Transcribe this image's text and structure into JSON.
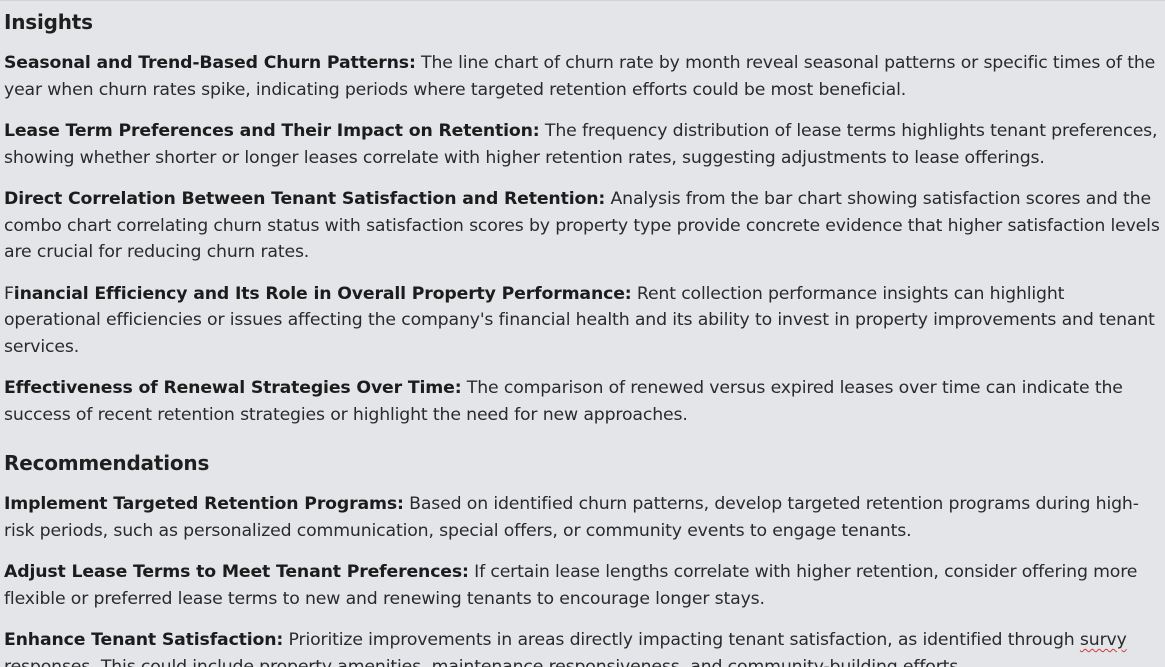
{
  "insights": {
    "heading": "Insights",
    "items": [
      {
        "title": "Seasonal and Trend-Based Churn Patterns:",
        "text": " The line chart of churn rate by month reveal seasonal patterns or specific times of the year when churn rates spike, indicating periods where targeted retention efforts could be most beneficial."
      },
      {
        "title": "Lease Term Preferences and Their Impact on Retention:",
        "text": " The frequency distribution of lease terms highlights tenant preferences, showing whether shorter or longer leases correlate with higher retention rates, suggesting adjustments to lease offerings."
      },
      {
        "title": "Direct Correlation Between Tenant Satisfaction and Retention:",
        "text": " Analysis from the bar chart showing satisfaction scores and the combo chart correlating churn status with satisfaction scores by property type provide concrete evidence that higher satisfaction levels are crucial for reducing churn rates."
      },
      {
        "prefix": "F",
        "title": "inancial Efficiency and Its Role in Overall Property Performance:",
        "text": " Rent collection performance insights can highlight operational efficiencies or issues affecting the company's financial health and its ability to invest in property improvements and tenant services."
      },
      {
        "title": "Effectiveness of Renewal Strategies Over Time:",
        "text": " The comparison of renewed versus expired leases over time can indicate the success of recent retention strategies or highlight the need for new approaches."
      }
    ]
  },
  "recommendations": {
    "heading": "Recommendations",
    "items": [
      {
        "title": "Implement Targeted Retention Programs:",
        "text": " Based on identified churn patterns, develop targeted retention programs during high-risk periods, such as personalized communication, special offers, or community events to engage tenants."
      },
      {
        "title": "Adjust Lease Terms to Meet Tenant Preferences:",
        "text": " If certain lease lengths correlate with higher retention, consider offering more flexible or preferred lease terms to new and renewing tenants to encourage longer stays."
      },
      {
        "title": "Enhance Tenant Satisfaction:",
        "text_before": " Prioritize improvements in areas directly impacting tenant satisfaction, as identified through ",
        "misspelled": "survy",
        "text_after": " responses. This could include property amenities, maintenance responsiveness, and community-building efforts."
      }
    ]
  }
}
